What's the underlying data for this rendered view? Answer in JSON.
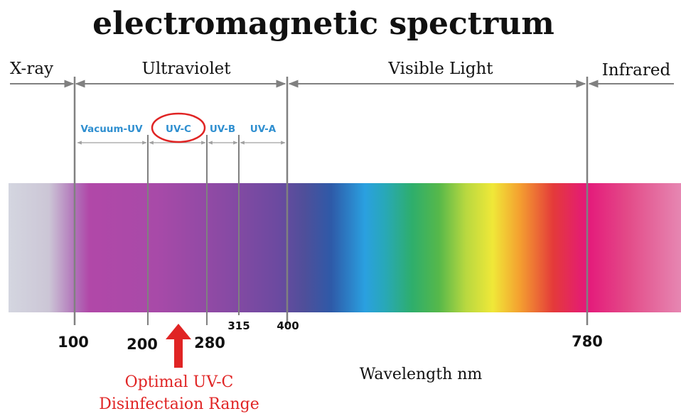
{
  "title": "electromagnetic spectrum",
  "regions": {
    "xray": "X-ray",
    "ultraviolet": "Ultraviolet",
    "visible": "Visible Light",
    "infrared": "Infrared"
  },
  "uv_bands": {
    "vacuum": "Vacuum-UV",
    "uvc": "UV-C",
    "uvb": "UV-B",
    "uva": "UV-A"
  },
  "ticks": {
    "t100": "100",
    "t200": "200",
    "t280": "280",
    "t315": "315",
    "t400": "400",
    "t780": "780"
  },
  "axis_label": "Wavelength nm",
  "callout": {
    "line1": "Optimal UV-C",
    "line2": "Disinfectaion Range"
  },
  "colors": {
    "accent": "#e02424",
    "uv_label": "#2f8fd0",
    "axis": "#808080"
  }
}
